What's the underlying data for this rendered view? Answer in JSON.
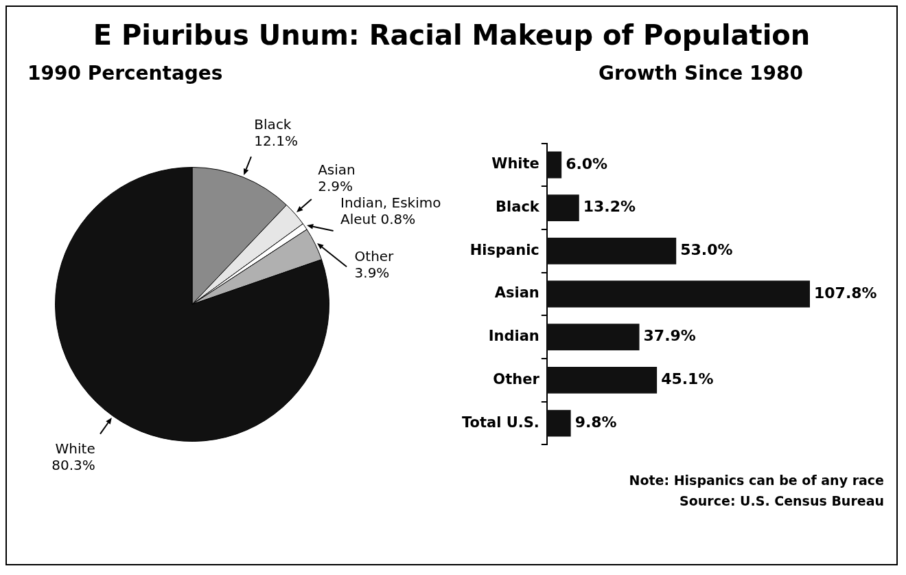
{
  "chart_data": [
    {
      "type": "pie",
      "title": "E Piuribus Unum:  Racial Makeup of Population",
      "subtitle": "1990 Percentages",
      "categories": [
        "Black",
        "Asian",
        "Indian, Eskimo Aleut",
        "Other",
        "White"
      ],
      "values": [
        12.1,
        2.9,
        0.8,
        3.9,
        80.3
      ],
      "value_labels": [
        "12.1%",
        "2.9%",
        "0.8%",
        "3.9%",
        "80.3%"
      ],
      "colors": [
        "#8a8a8a",
        "#e6e6e6",
        "#ffffff",
        "#b0b0b0",
        "#111111"
      ],
      "legend": false
    },
    {
      "type": "bar",
      "orientation": "horizontal",
      "title": "Growth Since 1980",
      "categories": [
        "White",
        "Black",
        "Hispanic",
        "Asian",
        "Indian",
        "Other",
        "Total U.S."
      ],
      "values": [
        6.0,
        13.2,
        53.0,
        107.8,
        37.9,
        45.1,
        9.8
      ],
      "value_labels": [
        "6.0%",
        "13.2%",
        "53.0%",
        "107.8%",
        "37.9%",
        "45.1%",
        "9.8%"
      ],
      "color": "#111111",
      "legend": false,
      "grid": false,
      "annotations": [
        "Note: Hispanics can be of any race",
        "Source: U.S. Census Bureau"
      ]
    }
  ]
}
